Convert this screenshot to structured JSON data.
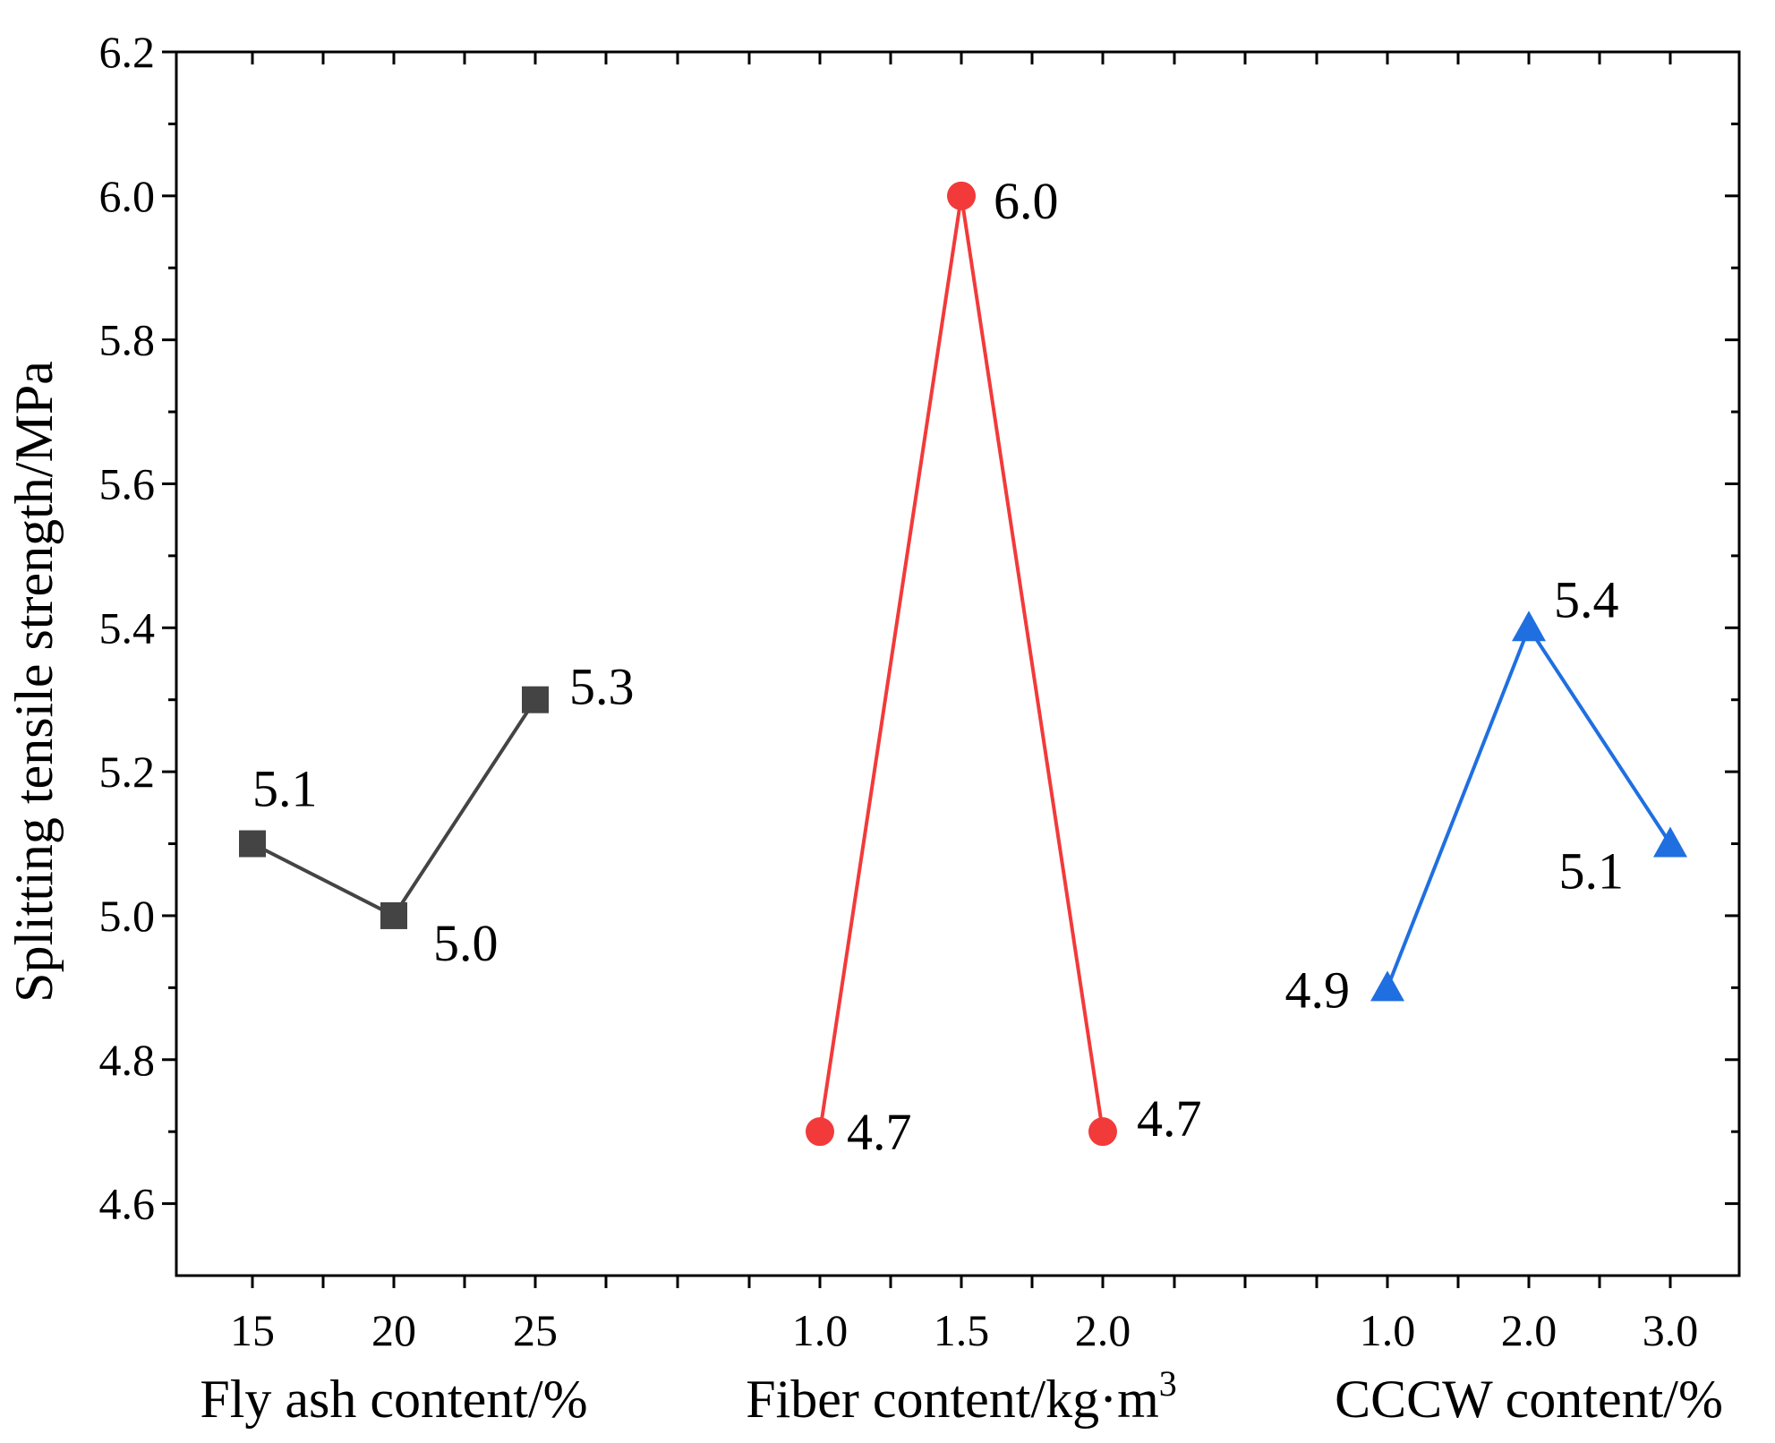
{
  "chart_data": {
    "type": "line",
    "ylabel": "Splitting tensile strength/MPa",
    "ylim": [
      4.5,
      6.2
    ],
    "yticks": [
      "4.6",
      "4.8",
      "5.0",
      "5.2",
      "5.4",
      "5.6",
      "5.8",
      "6.0",
      "6.2"
    ],
    "grid": false,
    "groups": [
      {
        "name": "Fly ash content/%",
        "xlabel": "Fly ash content/%",
        "categories": [
          "15",
          "20",
          "25"
        ],
        "values": [
          5.1,
          5.0,
          5.3
        ],
        "labels": [
          "5.1",
          "5.0",
          "5.3"
        ],
        "color": "#444444",
        "marker": "square"
      },
      {
        "name": "Fiber content/kg·m3",
        "xlabel": "Fiber content/kg·m",
        "xlabel_superscript": "3",
        "categories": [
          "1.0",
          "1.5",
          "2.0"
        ],
        "values": [
          4.7,
          6.0,
          4.7
        ],
        "labels": [
          "4.7",
          "6.0",
          "4.7"
        ],
        "color": "#f23a3a",
        "marker": "circle"
      },
      {
        "name": "CCCW content/%",
        "xlabel": "CCCW content/%",
        "categories": [
          "1.0",
          "2.0",
          "3.0"
        ],
        "values": [
          4.9,
          5.4,
          5.1
        ],
        "labels": [
          "4.9",
          "5.4",
          "5.1"
        ],
        "color": "#1f6fe0",
        "marker": "triangle"
      }
    ]
  }
}
